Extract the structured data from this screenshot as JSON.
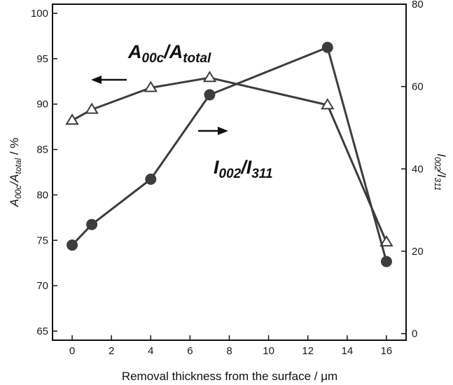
{
  "chart_data": {
    "type": "line",
    "x": [
      0,
      1,
      4,
      7,
      13,
      16
    ],
    "xlim": [
      -1,
      17
    ],
    "xticks": [
      0,
      2,
      4,
      6,
      8,
      10,
      12,
      14,
      16
    ],
    "xlabel": "Removal thickness from the surface / μm",
    "ylabel": "A00c/Atotal / %",
    "ylim": [
      64,
      101
    ],
    "yticks": [
      65,
      70,
      75,
      80,
      85,
      90,
      95,
      100
    ],
    "y2label": "I002/I311",
    "y2lim": [
      -1.6,
      80
    ],
    "y2ticks": [
      0,
      20,
      40,
      60,
      80
    ],
    "series": [
      {
        "name": "A00c/Atotal",
        "axis": "left",
        "marker": "triangle-open",
        "values": [
          88.2,
          89.4,
          91.8,
          92.9,
          89.9,
          74.8
        ]
      },
      {
        "name": "I002/I311",
        "axis": "right",
        "marker": "circle-filled",
        "values": [
          21.5,
          26.5,
          37.5,
          58.0,
          69.5,
          17.5
        ]
      }
    ],
    "annotations": [
      {
        "label": "A00c/Atotal",
        "arrow": "left"
      },
      {
        "label": "I002/I311",
        "arrow": "right"
      }
    ],
    "grid": false,
    "line_color": "#3d3d3d"
  }
}
